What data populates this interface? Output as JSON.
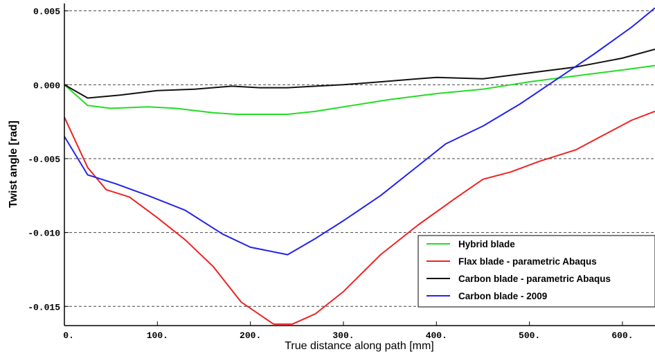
{
  "chart_data": {
    "type": "line",
    "title": "",
    "xlabel": "True distance along path [mm]",
    "ylabel": "Twist angle [rad]",
    "xlim": [
      0,
      635
    ],
    "ylim": [
      -0.0163,
      0.0055
    ],
    "x_ticks": [
      {
        "value": 0,
        "label": "0."
      },
      {
        "value": 100,
        "label": "100."
      },
      {
        "value": 200,
        "label": "200."
      },
      {
        "value": 300,
        "label": "300."
      },
      {
        "value": 400,
        "label": "400."
      },
      {
        "value": 500,
        "label": "500."
      },
      {
        "value": 600,
        "label": "600."
      }
    ],
    "y_ticks": [
      {
        "value": 0.005,
        "label": "0.005"
      },
      {
        "value": 0.0,
        "label": "0.000"
      },
      {
        "value": -0.005,
        "label": "-0.005"
      },
      {
        "value": -0.01,
        "label": "-0.010"
      },
      {
        "value": -0.015,
        "label": "-0.015"
      }
    ],
    "grid": "horizontal-dashed",
    "legend_position": "bottom-right",
    "series": [
      {
        "name": "Hybrid blade",
        "color": "#22dd22",
        "x": [
          0,
          25,
          50,
          90,
          120,
          160,
          185,
          210,
          240,
          270,
          300,
          350,
          400,
          450,
          500,
          550,
          600,
          635
        ],
        "y": [
          0.0,
          -0.0014,
          -0.0016,
          -0.0015,
          -0.0016,
          -0.0019,
          -0.002,
          -0.002,
          -0.002,
          -0.0018,
          -0.0015,
          -0.001,
          -0.0006,
          -0.0003,
          0.0002,
          0.0006,
          0.001,
          0.0013
        ]
      },
      {
        "name": "Flax blade - parametric Abaqus",
        "color": "#ee2222",
        "x": [
          0,
          25,
          45,
          70,
          100,
          130,
          160,
          190,
          225,
          245,
          270,
          300,
          340,
          380,
          420,
          450,
          480,
          510,
          550,
          580,
          610,
          635
        ],
        "y": [
          -0.0022,
          -0.0056,
          -0.0071,
          -0.0076,
          -0.009,
          -0.0105,
          -0.0123,
          -0.0147,
          -0.0162,
          -0.0162,
          -0.0155,
          -0.014,
          -0.0115,
          -0.0095,
          -0.0077,
          -0.0064,
          -0.0059,
          -0.0052,
          -0.0044,
          -0.0034,
          -0.0024,
          -0.0018
        ]
      },
      {
        "name": "Carbon blade - parametric Abaqus",
        "color": "#111111",
        "x": [
          0,
          25,
          60,
          100,
          140,
          180,
          210,
          240,
          270,
          300,
          340,
          380,
          400,
          450,
          500,
          550,
          600,
          635
        ],
        "y": [
          0.0,
          -0.0009,
          -0.0007,
          -0.0004,
          -0.0003,
          -0.0001,
          -0.0002,
          -0.0002,
          -0.0001,
          0.0,
          0.0002,
          0.0004,
          0.0005,
          0.0004,
          0.0008,
          0.0012,
          0.0018,
          0.0024
        ]
      },
      {
        "name": "Carbon blade - 2009",
        "color": "#2222ee",
        "x": [
          0,
          25,
          55,
          90,
          130,
          170,
          200,
          240,
          270,
          300,
          340,
          380,
          410,
          450,
          490,
          530,
          570,
          610,
          635
        ],
        "y": [
          -0.0035,
          -0.0061,
          -0.0067,
          -0.0075,
          -0.0085,
          -0.0101,
          -0.011,
          -0.0115,
          -0.0104,
          -0.0092,
          -0.0075,
          -0.0055,
          -0.004,
          -0.0028,
          -0.0013,
          0.0004,
          0.0021,
          0.0039,
          0.0052
        ]
      }
    ]
  }
}
